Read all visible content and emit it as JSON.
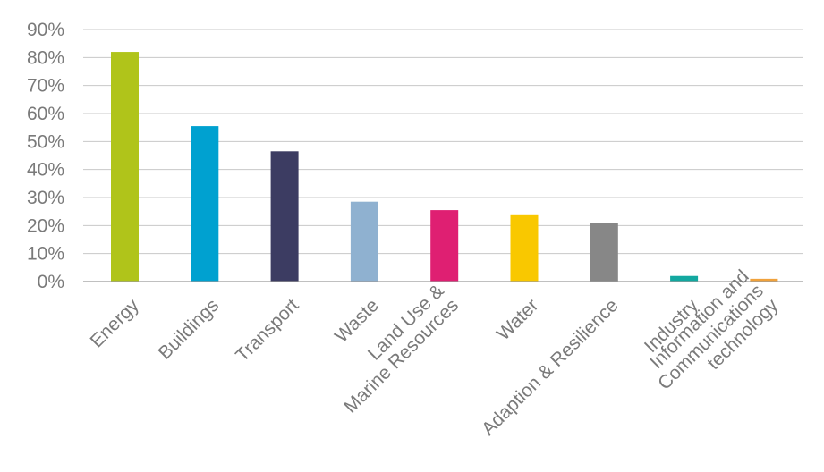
{
  "chart_data": {
    "type": "bar",
    "title": "",
    "xlabel": "",
    "ylabel": "",
    "categories": [
      [
        "Energy"
      ],
      [
        "Buildings"
      ],
      [
        "Transport"
      ],
      [
        "Waste"
      ],
      [
        "Land Use &",
        "Marine Resources"
      ],
      [
        "Water"
      ],
      [
        "Adaption & Resilience"
      ],
      [
        "Industry"
      ],
      [
        "Information and",
        "Communications",
        "technology"
      ]
    ],
    "values": [
      82,
      55.5,
      46.5,
      28.5,
      25.5,
      24,
      21,
      2,
      1
    ],
    "colors": [
      "#b0c41a",
      "#00a1d0",
      "#3c3c62",
      "#8fb1d0",
      "#df1f72",
      "#f9c800",
      "#878787",
      "#13a8a0",
      "#f0a23c"
    ],
    "ylim": [
      0,
      90
    ],
    "yticks": [
      0,
      10,
      20,
      30,
      40,
      50,
      60,
      70,
      80,
      90
    ],
    "ytick_labels": [
      "0%",
      "10%",
      "20%",
      "30%",
      "40%",
      "50%",
      "60%",
      "70%",
      "80%",
      "90%"
    ],
    "grid": true,
    "legend": "none"
  }
}
